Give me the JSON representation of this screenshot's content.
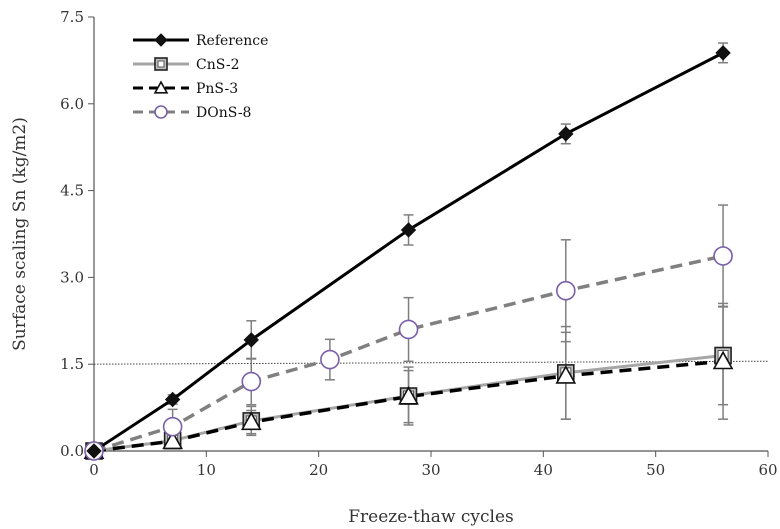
{
  "chart_data": {
    "type": "line",
    "xlabel": "Freeze-thaw cycles",
    "ylabel": "Surface scaling Sn (kg/m2)",
    "xlim": [
      0,
      60
    ],
    "ylim": [
      0,
      7.5
    ],
    "xticks": [
      0,
      10,
      20,
      30,
      40,
      50,
      60
    ],
    "yticks": [
      0.0,
      1.5,
      3.0,
      4.5,
      6.0,
      7.5
    ],
    "xtick_labels": [
      "0",
      "10",
      "20",
      "30",
      "40",
      "50",
      "60"
    ],
    "ytick_labels": [
      "0.0",
      "1.5",
      "3.0",
      "4.5",
      "6.0",
      "7.5"
    ],
    "grid": false,
    "legend_position": "top-left",
    "reference_line": {
      "y": 1.5,
      "style": "dotted"
    },
    "series": [
      {
        "name": "Reference",
        "color": "#000000",
        "dash": "solid",
        "marker": "diamond",
        "x": [
          0,
          7,
          14,
          28,
          42,
          56
        ],
        "y": [
          0,
          0.89,
          1.92,
          3.82,
          5.48,
          6.88
        ],
        "err": [
          0,
          0.08,
          0.33,
          0.26,
          0.17,
          0.17
        ]
      },
      {
        "name": "CnS-2",
        "color": "#a6a6a6",
        "dash": "solid",
        "marker": "square",
        "x": [
          0,
          7,
          14,
          28,
          42,
          56
        ],
        "y": [
          0,
          0.18,
          0.52,
          0.95,
          1.35,
          1.65
        ],
        "err": [
          0,
          0.05,
          0.25,
          0.5,
          0.8,
          0.85
        ]
      },
      {
        "name": "PnS-3",
        "color": "#000000",
        "dash": "dashed",
        "marker": "triangle",
        "x": [
          0,
          7,
          14,
          28,
          42,
          56
        ],
        "y": [
          0,
          0.17,
          0.5,
          0.94,
          1.3,
          1.55
        ],
        "err": [
          0,
          0.05,
          0.2,
          0.45,
          0.75,
          1.0
        ]
      },
      {
        "name": "DOnS-8",
        "color": "#808080",
        "dash": "dashed",
        "marker": "circle",
        "x": [
          0,
          7,
          14,
          21,
          28,
          42,
          56
        ],
        "y": [
          0,
          0.42,
          1.2,
          1.58,
          2.1,
          2.77,
          3.37
        ],
        "err": [
          0,
          0.3,
          0.4,
          0.35,
          0.55,
          0.88,
          0.88
        ]
      }
    ]
  }
}
